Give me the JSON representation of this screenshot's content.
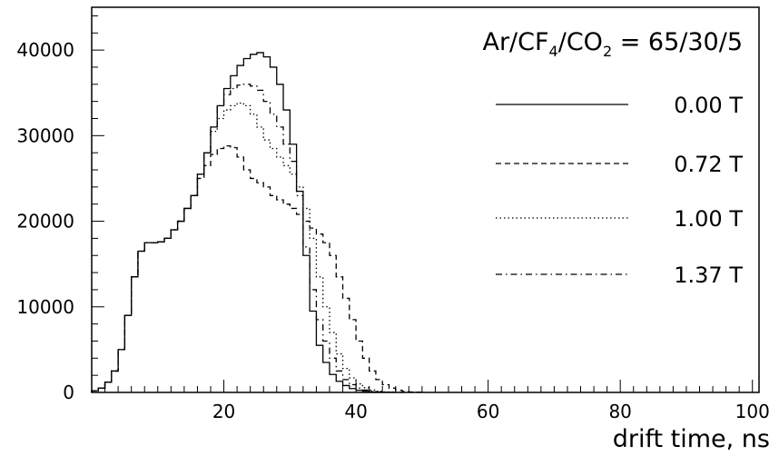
{
  "chart_data": {
    "type": "line",
    "title": "Ar/CF4/CO2 = 65/30/5",
    "title_parts": {
      "a": "Ar/CF",
      "sub1": "4",
      "b": "/CO",
      "sub2": "2",
      "c": " = 65/30/5"
    },
    "xlabel": "drift time, ns",
    "ylabel": "",
    "xlim": [
      0,
      101
    ],
    "ylim": [
      0,
      45000
    ],
    "xticks": [
      20,
      40,
      60,
      80,
      100
    ],
    "yticks": [
      0,
      10000,
      20000,
      30000,
      40000
    ],
    "xtick_labels": [
      "20",
      "40",
      "60",
      "80",
      "100"
    ],
    "ytick_labels": [
      "0",
      "10000",
      "20000",
      "30000",
      "40000"
    ],
    "grid": false,
    "legend_position": "right",
    "bin_width": 1,
    "series": [
      {
        "name": "0.00 T",
        "line_style": "solid",
        "x": [
          1,
          2,
          3,
          4,
          5,
          6,
          7,
          8,
          9,
          10,
          11,
          12,
          13,
          14,
          15,
          16,
          17,
          18,
          19,
          20,
          21,
          22,
          23,
          24,
          25,
          26,
          27,
          28,
          29,
          30,
          31,
          32,
          33,
          34,
          35,
          36,
          37,
          38,
          39,
          40,
          41,
          42,
          43,
          44,
          45
        ],
        "values": [
          200,
          500,
          1200,
          2500,
          5000,
          9000,
          13500,
          16500,
          17500,
          17500,
          17600,
          18000,
          19000,
          20000,
          21500,
          23000,
          25500,
          28000,
          31000,
          33500,
          35500,
          37000,
          38200,
          39000,
          39500,
          39700,
          39200,
          38000,
          36000,
          33000,
          29000,
          23500,
          16000,
          9500,
          5500,
          3500,
          2100,
          1300,
          800,
          450,
          250,
          130,
          70,
          30,
          10
        ]
      },
      {
        "name": "0.72 T",
        "line_style": "dashed",
        "x": [
          1,
          2,
          3,
          4,
          5,
          6,
          7,
          8,
          9,
          10,
          11,
          12,
          13,
          14,
          15,
          16,
          17,
          18,
          19,
          20,
          21,
          22,
          23,
          24,
          25,
          26,
          27,
          28,
          29,
          30,
          31,
          32,
          33,
          34,
          35,
          36,
          37,
          38,
          39,
          40,
          41,
          42,
          43,
          44,
          45,
          46,
          47,
          48,
          49,
          50
        ],
        "values": [
          200,
          500,
          1200,
          2500,
          5000,
          9000,
          13500,
          16500,
          17500,
          17500,
          17600,
          18000,
          19000,
          20000,
          21500,
          23000,
          25000,
          26500,
          27800,
          28500,
          28800,
          28600,
          27500,
          26000,
          25000,
          24500,
          24000,
          23000,
          22500,
          22000,
          21500,
          20800,
          20000,
          19200,
          18500,
          17500,
          16000,
          13500,
          11000,
          8500,
          6000,
          4000,
          2500,
          1500,
          900,
          500,
          250,
          120,
          50,
          20
        ]
      },
      {
        "name": "1.00 T",
        "line_style": "dotted",
        "x": [
          1,
          2,
          3,
          4,
          5,
          6,
          7,
          8,
          9,
          10,
          11,
          12,
          13,
          14,
          15,
          16,
          17,
          18,
          19,
          20,
          21,
          22,
          23,
          24,
          25,
          26,
          27,
          28,
          29,
          30,
          31,
          32,
          33,
          34,
          35,
          36,
          37,
          38,
          39,
          40,
          41,
          42,
          43,
          44,
          45,
          46
        ],
        "values": [
          200,
          500,
          1200,
          2500,
          5000,
          9000,
          13500,
          16500,
          17500,
          17500,
          17600,
          18000,
          19000,
          20000,
          21500,
          23000,
          25500,
          28000,
          30500,
          32000,
          33000,
          33500,
          33800,
          33500,
          32500,
          31000,
          29500,
          28500,
          27500,
          26500,
          25500,
          24000,
          21500,
          18000,
          13500,
          10000,
          7000,
          4500,
          2800,
          1700,
          1000,
          550,
          280,
          130,
          50,
          20
        ]
      },
      {
        "name": "1.37 T",
        "line_style": "dashdot",
        "x": [
          1,
          2,
          3,
          4,
          5,
          6,
          7,
          8,
          9,
          10,
          11,
          12,
          13,
          14,
          15,
          16,
          17,
          18,
          19,
          20,
          21,
          22,
          23,
          24,
          25,
          26,
          27,
          28,
          29,
          30,
          31,
          32,
          33,
          34,
          35,
          36,
          37,
          38,
          39,
          40,
          41,
          42,
          43,
          44,
          45,
          46,
          47
        ],
        "values": [
          200,
          500,
          1200,
          2500,
          5000,
          9000,
          13500,
          16500,
          17500,
          17500,
          17600,
          18000,
          19000,
          20000,
          21500,
          23000,
          25500,
          28000,
          31000,
          33500,
          34800,
          35500,
          35900,
          36000,
          35800,
          35300,
          34000,
          32500,
          31000,
          29000,
          27000,
          23000,
          17000,
          12000,
          8500,
          6000,
          4000,
          2500,
          1500,
          900,
          500,
          280,
          150,
          70,
          30,
          15,
          5
        ]
      }
    ]
  }
}
